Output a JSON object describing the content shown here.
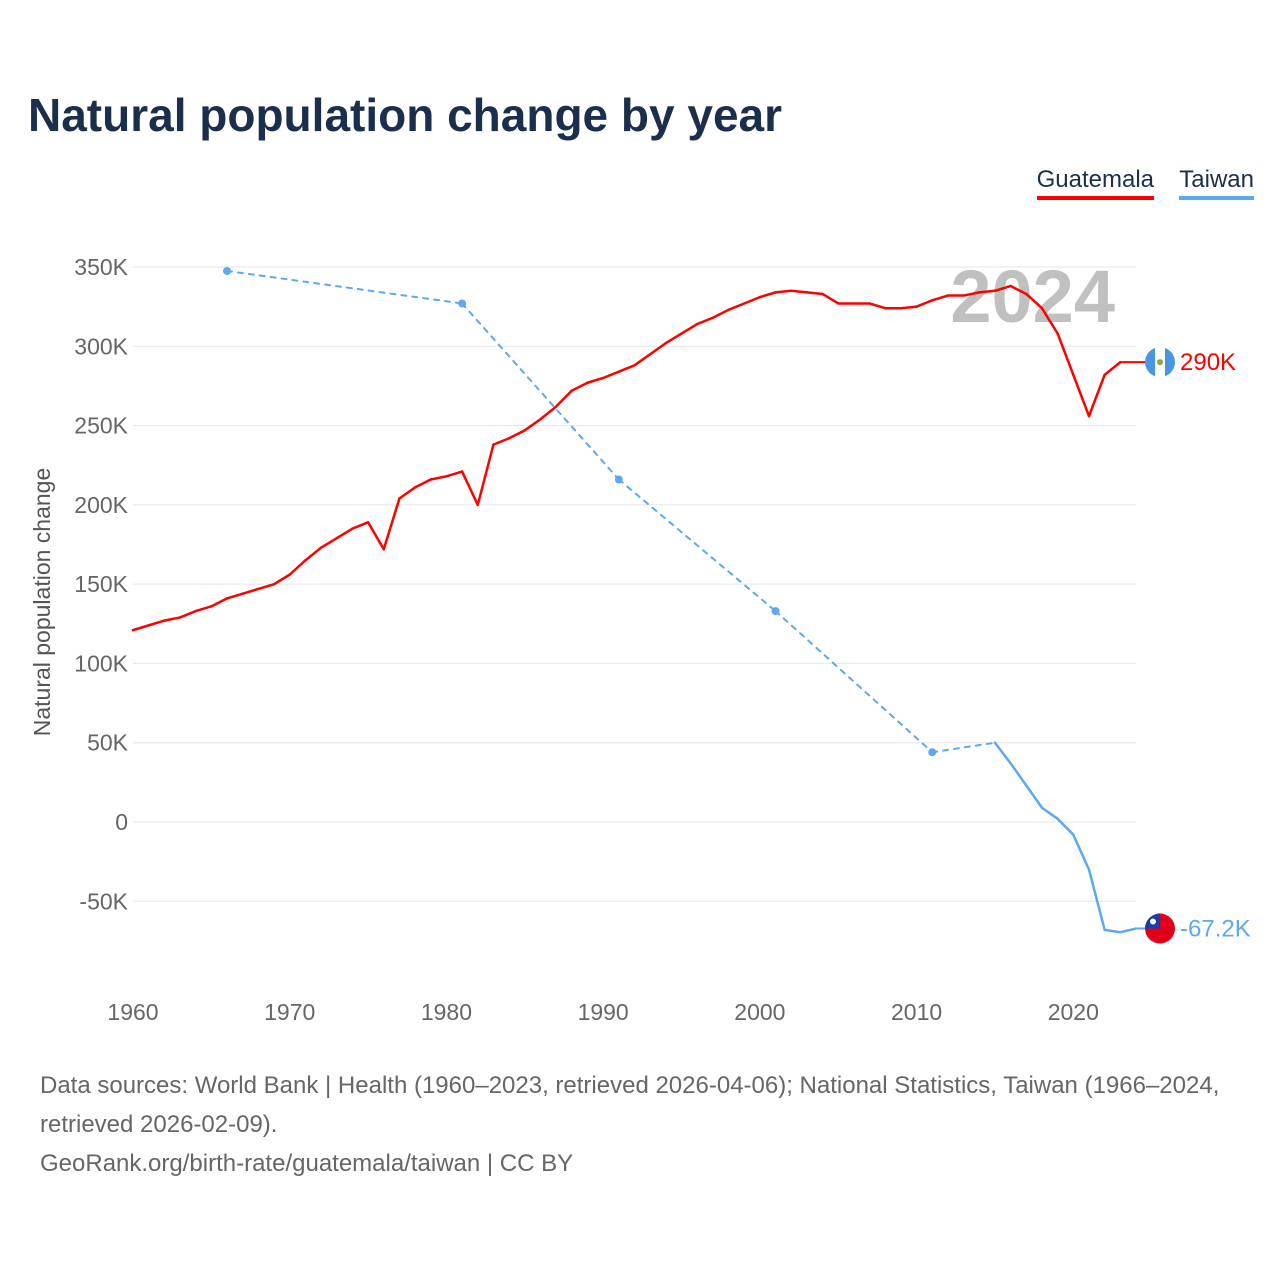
{
  "title": "Natural population change by year",
  "legend": [
    {
      "label": "Guatemala",
      "color": "#ff0000"
    },
    {
      "label": "Taiwan",
      "color": "#5ea8ee"
    }
  ],
  "year_watermark": "2024",
  "footer": {
    "sources": "Data sources: World Bank | Health (1960–2023, retrieved 2026-04-06); National Statistics, Taiwan (1966–2024, retrieved 2026-02-09).",
    "link": "GeoRank.org/birth-rate/guatemala/taiwan | CC BY"
  },
  "chart_data": {
    "type": "line",
    "title": "Natural population change by year",
    "xlabel": "",
    "ylabel": "Natural population change",
    "xlim": [
      1960,
      2024
    ],
    "ylim": [
      -85000,
      350000
    ],
    "x_ticks": [
      1960,
      1970,
      1980,
      1990,
      2000,
      2010,
      2020
    ],
    "x_tick_labels": [
      "1960",
      "1970",
      "1980",
      "1990",
      "2000",
      "2010",
      "2020"
    ],
    "y_ticks": [
      -50000,
      0,
      50000,
      100000,
      150000,
      200000,
      250000,
      300000,
      350000
    ],
    "y_tick_labels": [
      "-50K",
      "0",
      "50K",
      "100K",
      "150K",
      "200K",
      "250K",
      "300K",
      "350K"
    ],
    "grid": true,
    "legend_position": "top-right",
    "series": [
      {
        "name": "Guatemala",
        "color": "#ff0000",
        "end_label": "290K",
        "x": [
          1960,
          1961,
          1962,
          1963,
          1964,
          1965,
          1966,
          1967,
          1968,
          1969,
          1970,
          1971,
          1972,
          1973,
          1974,
          1975,
          1976,
          1977,
          1978,
          1979,
          1980,
          1981,
          1982,
          1983,
          1984,
          1985,
          1986,
          1987,
          1988,
          1989,
          1990,
          1991,
          1992,
          1993,
          1994,
          1995,
          1996,
          1997,
          1998,
          1999,
          2000,
          2001,
          2002,
          2003,
          2004,
          2005,
          2006,
          2007,
          2008,
          2009,
          2010,
          2011,
          2012,
          2013,
          2014,
          2015,
          2016,
          2017,
          2018,
          2019,
          2020,
          2021,
          2022,
          2023
        ],
        "y": [
          121000,
          124000,
          127000,
          129000,
          133000,
          136000,
          141000,
          144000,
          147000,
          150000,
          156000,
          165000,
          173000,
          179000,
          185000,
          189000,
          172000,
          204000,
          211000,
          216000,
          218000,
          221000,
          200000,
          238000,
          242000,
          247000,
          254000,
          262000,
          272000,
          277000,
          280000,
          284000,
          288000,
          295000,
          302000,
          308000,
          314000,
          318000,
          323000,
          327000,
          331000,
          334000,
          335000,
          334000,
          333000,
          327000,
          327000,
          327000,
          324000,
          324000,
          325000,
          329000,
          332000,
          332000,
          334000,
          335000,
          338000,
          333000,
          324000,
          308000,
          282000,
          256000,
          282000,
          290000
        ]
      },
      {
        "name": "Taiwan",
        "color": "#5ea8ee",
        "end_label": "-67.2K",
        "x": [
          1966,
          1981,
          1991,
          2001,
          2011,
          2015,
          2016,
          2017,
          2018,
          2019,
          2020,
          2021,
          2022,
          2023,
          2024
        ],
        "y": [
          347500,
          327000,
          216000,
          133000,
          44000,
          50000,
          37000,
          23000,
          9000,
          2000,
          -8000,
          -30000,
          -68000,
          -69500,
          -67200
        ]
      }
    ]
  }
}
